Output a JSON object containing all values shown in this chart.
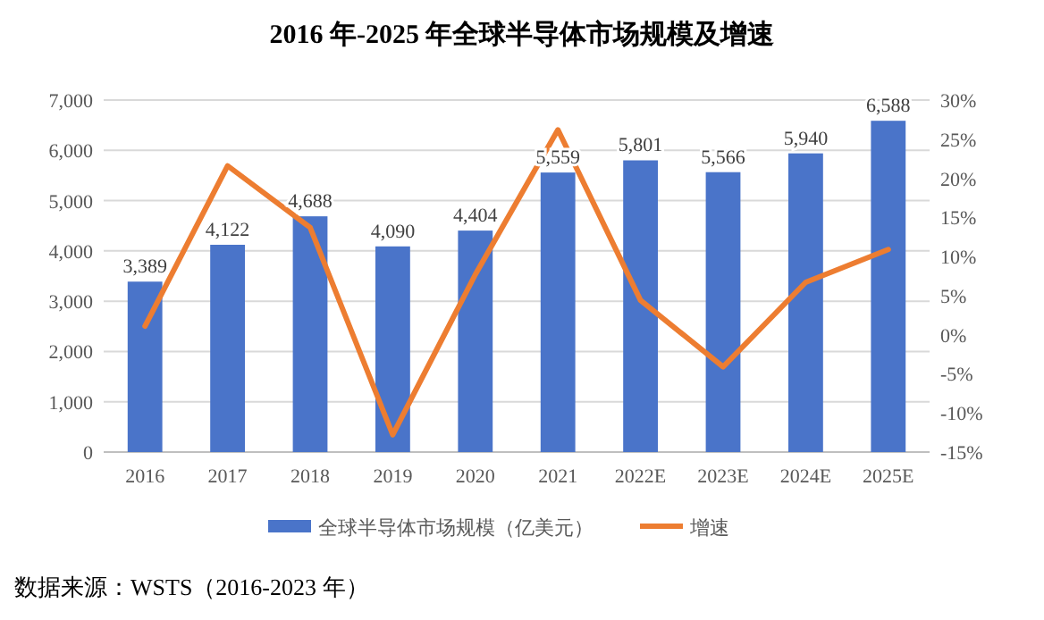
{
  "chart_data": {
    "type": "bar",
    "title": "2016 年-2025 年全球半导体市场规模及增速",
    "categories": [
      "2016",
      "2017",
      "2018",
      "2019",
      "2020",
      "2021",
      "2022E",
      "2023E",
      "2024E",
      "2025E"
    ],
    "series": [
      {
        "name": "全球半导体市场规模（亿美元）",
        "color": "#4a74c9",
        "values": [
          3389,
          4122,
          4688,
          4090,
          4404,
          5559,
          5801,
          5566,
          5940,
          6588
        ],
        "value_labels": [
          "3,389",
          "4,122",
          "4,688",
          "4,090",
          "4,404",
          "5,559",
          "5,801",
          "5,566",
          "5,940",
          "6,588"
        ]
      },
      {
        "name": "增速",
        "type": "line",
        "axis": "y2",
        "color": "#ed7d31",
        "values": [
          1.1,
          21.6,
          13.7,
          -12.8,
          7.7,
          26.2,
          4.4,
          -4.1,
          6.7,
          10.9
        ]
      }
    ],
    "ylim": [
      0,
      7000
    ],
    "yticks": [
      {
        "value": 0,
        "label": "0"
      },
      {
        "value": 1000,
        "label": "1,000"
      },
      {
        "value": 2000,
        "label": "2,000"
      },
      {
        "value": 3000,
        "label": "3,000"
      },
      {
        "value": 4000,
        "label": "4,000"
      },
      {
        "value": 5000,
        "label": "5,000"
      },
      {
        "value": 6000,
        "label": "6,000"
      },
      {
        "value": 7000,
        "label": "7,000"
      }
    ],
    "y2lim": [
      -15,
      30
    ],
    "y2ticks": [
      {
        "value": -15,
        "label": "-15%"
      },
      {
        "value": -10,
        "label": "-10%"
      },
      {
        "value": -5,
        "label": "-5%"
      },
      {
        "value": 0,
        "label": "0%"
      },
      {
        "value": 5,
        "label": "5%"
      },
      {
        "value": 10,
        "label": "10%"
      },
      {
        "value": 15,
        "label": "15%"
      },
      {
        "value": 20,
        "label": "20%"
      },
      {
        "value": 25,
        "label": "25%"
      },
      {
        "value": 30,
        "label": "30%"
      }
    ],
    "grid": "y",
    "legend": "bottom",
    "marker": "none",
    "line_style": "solid",
    "annotations": [
      "数据来源：WSTS（2016-2023 年）"
    ]
  }
}
